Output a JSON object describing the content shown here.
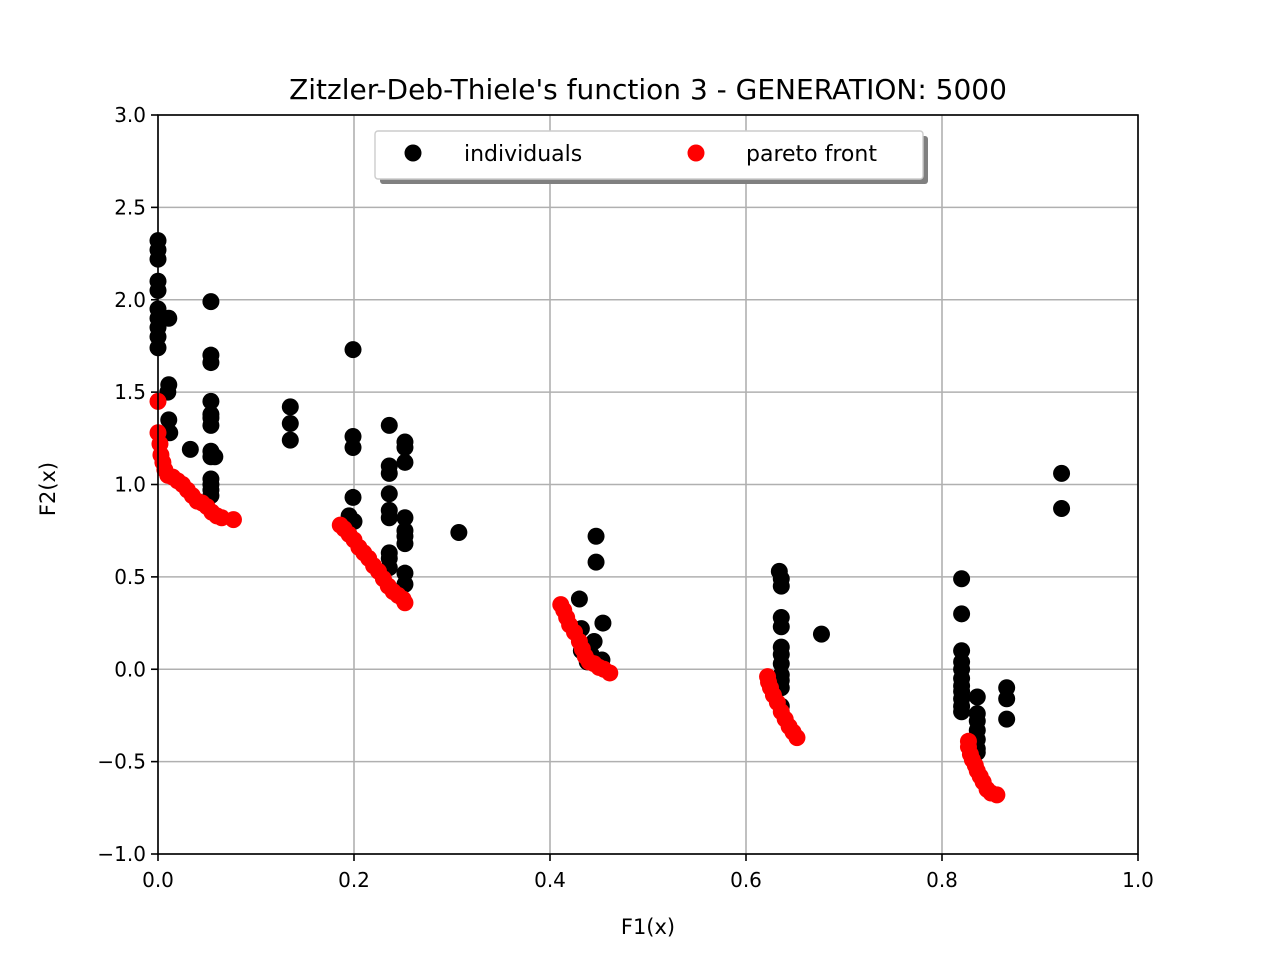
{
  "chart_data": {
    "type": "scatter",
    "title": "Zitzler-Deb-Thiele's function 3  -  GENERATION: 5000",
    "xlabel": "F1(x)",
    "ylabel": "F2(x)",
    "xlim": [
      0.0,
      1.0
    ],
    "ylim": [
      -1.0,
      3.0
    ],
    "xticks": [
      "0.0",
      "0.2",
      "0.4",
      "0.6",
      "0.8",
      "1.0"
    ],
    "yticks": [
      "−1.0",
      "−0.5",
      "0.0",
      "0.5",
      "1.0",
      "1.5",
      "2.0",
      "2.5",
      "3.0"
    ],
    "grid": true,
    "legend_position": "upper-center",
    "series": [
      {
        "name": "individuals",
        "color": "#000000",
        "points": [
          [
            0.0,
            2.32
          ],
          [
            0.0,
            2.27
          ],
          [
            0.0,
            2.22
          ],
          [
            0.0,
            2.1
          ],
          [
            0.0,
            2.05
          ],
          [
            0.0,
            1.95
          ],
          [
            0.0,
            1.9
          ],
          [
            0.0,
            1.85
          ],
          [
            0.0,
            1.8
          ],
          [
            0.0,
            1.74
          ],
          [
            0.011,
            1.9
          ],
          [
            0.011,
            1.54
          ],
          [
            0.01,
            1.5
          ],
          [
            0.011,
            1.35
          ],
          [
            0.012,
            1.28
          ],
          [
            0.033,
            1.19
          ],
          [
            0.054,
            1.99
          ],
          [
            0.054,
            1.7
          ],
          [
            0.054,
            1.66
          ],
          [
            0.054,
            1.45
          ],
          [
            0.054,
            1.38
          ],
          [
            0.054,
            1.36
          ],
          [
            0.054,
            1.32
          ],
          [
            0.054,
            1.18
          ],
          [
            0.054,
            1.15
          ],
          [
            0.058,
            1.15
          ],
          [
            0.054,
            1.03
          ],
          [
            0.054,
            1.0
          ],
          [
            0.054,
            0.97
          ],
          [
            0.054,
            0.94
          ],
          [
            0.135,
            1.42
          ],
          [
            0.135,
            1.33
          ],
          [
            0.135,
            1.24
          ],
          [
            0.199,
            1.73
          ],
          [
            0.199,
            1.26
          ],
          [
            0.199,
            1.2
          ],
          [
            0.199,
            0.93
          ],
          [
            0.195,
            0.83
          ],
          [
            0.2,
            0.8
          ],
          [
            0.236,
            1.32
          ],
          [
            0.236,
            1.1
          ],
          [
            0.236,
            1.06
          ],
          [
            0.236,
            0.95
          ],
          [
            0.236,
            0.86
          ],
          [
            0.236,
            0.82
          ],
          [
            0.236,
            0.63
          ],
          [
            0.236,
            0.6
          ],
          [
            0.236,
            0.55
          ],
          [
            0.252,
            1.23
          ],
          [
            0.252,
            1.2
          ],
          [
            0.252,
            1.12
          ],
          [
            0.252,
            0.82
          ],
          [
            0.252,
            0.75
          ],
          [
            0.252,
            0.72
          ],
          [
            0.252,
            0.68
          ],
          [
            0.252,
            0.52
          ],
          [
            0.252,
            0.46
          ],
          [
            0.307,
            0.74
          ],
          [
            0.43,
            0.38
          ],
          [
            0.447,
            0.72
          ],
          [
            0.447,
            0.58
          ],
          [
            0.432,
            0.22
          ],
          [
            0.454,
            0.25
          ],
          [
            0.445,
            0.15
          ],
          [
            0.432,
            0.1
          ],
          [
            0.442,
            0.08
          ],
          [
            0.453,
            0.05
          ],
          [
            0.438,
            0.04
          ],
          [
            0.634,
            0.53
          ],
          [
            0.636,
            0.49
          ],
          [
            0.636,
            0.45
          ],
          [
            0.636,
            0.28
          ],
          [
            0.636,
            0.23
          ],
          [
            0.636,
            0.12
          ],
          [
            0.636,
            0.08
          ],
          [
            0.636,
            0.03
          ],
          [
            0.636,
            -0.03
          ],
          [
            0.636,
            -0.06
          ],
          [
            0.636,
            -0.1
          ],
          [
            0.636,
            -0.2
          ],
          [
            0.677,
            0.19
          ],
          [
            0.82,
            0.49
          ],
          [
            0.82,
            0.3
          ],
          [
            0.82,
            0.1
          ],
          [
            0.82,
            0.04
          ],
          [
            0.82,
            0.0
          ],
          [
            0.82,
            -0.05
          ],
          [
            0.82,
            -0.09
          ],
          [
            0.82,
            -0.12
          ],
          [
            0.82,
            -0.16
          ],
          [
            0.82,
            -0.2
          ],
          [
            0.82,
            -0.23
          ],
          [
            0.836,
            -0.15
          ],
          [
            0.836,
            -0.24
          ],
          [
            0.836,
            -0.28
          ],
          [
            0.836,
            -0.33
          ],
          [
            0.836,
            -0.38
          ],
          [
            0.836,
            -0.43
          ],
          [
            0.836,
            -0.45
          ],
          [
            0.866,
            -0.1
          ],
          [
            0.866,
            -0.16
          ],
          [
            0.866,
            -0.27
          ],
          [
            0.922,
            1.06
          ],
          [
            0.922,
            0.87
          ]
        ]
      },
      {
        "name": "pareto front",
        "color": "#ff0000",
        "points": [
          [
            0.0,
            1.45
          ],
          [
            0.0,
            1.28
          ],
          [
            0.002,
            1.22
          ],
          [
            0.003,
            1.16
          ],
          [
            0.005,
            1.12
          ],
          [
            0.007,
            1.08
          ],
          [
            0.01,
            1.05
          ],
          [
            0.015,
            1.04
          ],
          [
            0.02,
            1.02
          ],
          [
            0.025,
            1.0
          ],
          [
            0.03,
            0.97
          ],
          [
            0.035,
            0.94
          ],
          [
            0.04,
            0.91
          ],
          [
            0.045,
            0.9
          ],
          [
            0.05,
            0.88
          ],
          [
            0.055,
            0.85
          ],
          [
            0.06,
            0.83
          ],
          [
            0.065,
            0.82
          ],
          [
            0.077,
            0.81
          ],
          [
            0.186,
            0.78
          ],
          [
            0.19,
            0.76
          ],
          [
            0.195,
            0.73
          ],
          [
            0.2,
            0.7
          ],
          [
            0.205,
            0.66
          ],
          [
            0.21,
            0.63
          ],
          [
            0.215,
            0.6
          ],
          [
            0.22,
            0.56
          ],
          [
            0.225,
            0.53
          ],
          [
            0.23,
            0.49
          ],
          [
            0.235,
            0.45
          ],
          [
            0.24,
            0.42
          ],
          [
            0.245,
            0.4
          ],
          [
            0.25,
            0.38
          ],
          [
            0.252,
            0.36
          ],
          [
            0.411,
            0.35
          ],
          [
            0.414,
            0.32
          ],
          [
            0.417,
            0.28
          ],
          [
            0.42,
            0.24
          ],
          [
            0.425,
            0.2
          ],
          [
            0.43,
            0.15
          ],
          [
            0.433,
            0.11
          ],
          [
            0.436,
            0.07
          ],
          [
            0.44,
            0.04
          ],
          [
            0.445,
            0.03
          ],
          [
            0.45,
            0.01
          ],
          [
            0.455,
            0.0
          ],
          [
            0.461,
            -0.02
          ],
          [
            0.622,
            -0.04
          ],
          [
            0.623,
            -0.07
          ],
          [
            0.625,
            -0.1
          ],
          [
            0.628,
            -0.14
          ],
          [
            0.632,
            -0.18
          ],
          [
            0.636,
            -0.23
          ],
          [
            0.64,
            -0.27
          ],
          [
            0.644,
            -0.31
          ],
          [
            0.648,
            -0.34
          ],
          [
            0.652,
            -0.37
          ],
          [
            0.827,
            -0.39
          ],
          [
            0.827,
            -0.42
          ],
          [
            0.829,
            -0.46
          ],
          [
            0.831,
            -0.49
          ],
          [
            0.834,
            -0.52
          ],
          [
            0.836,
            -0.55
          ],
          [
            0.839,
            -0.58
          ],
          [
            0.842,
            -0.61
          ],
          [
            0.846,
            -0.65
          ],
          [
            0.85,
            -0.67
          ],
          [
            0.856,
            -0.68
          ]
        ]
      }
    ]
  }
}
